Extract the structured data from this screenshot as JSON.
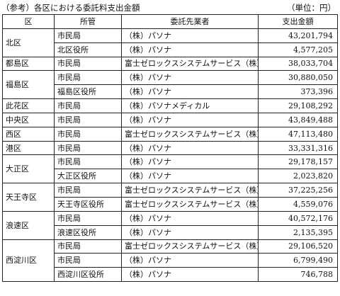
{
  "caption": "（参考）各区における委託料支出金額",
  "unit": "（単位：円）",
  "headers": {
    "ward": "区",
    "office": "所管",
    "contractor": "委託先業者",
    "amount": "支出金額"
  },
  "groups": [
    {
      "ward": "北区",
      "rows": [
        {
          "office": "市民局",
          "contractor": "（株）パソナ",
          "amount": "43,201,794"
        },
        {
          "office": "北区役所",
          "contractor": "（株）パソナ",
          "amount": "4,577,205"
        }
      ]
    },
    {
      "ward": "都島区",
      "rows": [
        {
          "office": "市民局",
          "contractor": "富士ゼロックスシステムサービス（株）",
          "amount": "38,033,704"
        }
      ]
    },
    {
      "ward": "福島区",
      "rows": [
        {
          "office": "市民局",
          "contractor": "（株）パソナ",
          "amount": "30,880,050"
        },
        {
          "office": "福島区役所",
          "contractor": "（株）パソナ",
          "amount": "373,396"
        }
      ]
    },
    {
      "ward": "此花区",
      "rows": [
        {
          "office": "市民局",
          "contractor": "（株）パソナメディカル",
          "amount": "29,108,292"
        }
      ]
    },
    {
      "ward": "中央区",
      "rows": [
        {
          "office": "市民局",
          "contractor": "（株）パソナ",
          "amount": "43,849,488"
        }
      ]
    },
    {
      "ward": "西区",
      "rows": [
        {
          "office": "市民局",
          "contractor": "富士ゼロックスシステムサービス（株）",
          "amount": "47,113,480"
        }
      ]
    },
    {
      "ward": "港区",
      "rows": [
        {
          "office": "市民局",
          "contractor": "（株）パソナ",
          "amount": "33,331,316"
        }
      ]
    },
    {
      "ward": "大正区",
      "rows": [
        {
          "office": "市民局",
          "contractor": "（株）パソナ",
          "amount": "29,178,157"
        },
        {
          "office": "大正区役所",
          "contractor": "（株）パソナ",
          "amount": "2,023,820"
        }
      ]
    },
    {
      "ward": "天王寺区",
      "rows": [
        {
          "office": "市民局",
          "contractor": "富士ゼロックスシステムサービス（株）",
          "amount": "37,225,256"
        },
        {
          "office": "天王寺区役所",
          "contractor": "富士ゼロックスシステムサービス（株）",
          "amount": "4,559,076"
        }
      ]
    },
    {
      "ward": "浪速区",
      "rows": [
        {
          "office": "市民局",
          "contractor": "（株）パソナ",
          "amount": "40,572,176"
        },
        {
          "office": "浪速区役所",
          "contractor": "（株）パソナ",
          "amount": "2,135,395"
        }
      ]
    },
    {
      "ward": "西淀川区",
      "rows": [
        {
          "office": "市民局",
          "contractor": "富士ゼロックスシステムサービス（株）",
          "amount": "29,106,520"
        },
        {
          "office": "市民局",
          "contractor": "（株）パソナ",
          "amount": "6,799,490"
        },
        {
          "office": "西淀川区役所",
          "contractor": "（株）パソナ",
          "amount": "746,788"
        }
      ]
    }
  ]
}
